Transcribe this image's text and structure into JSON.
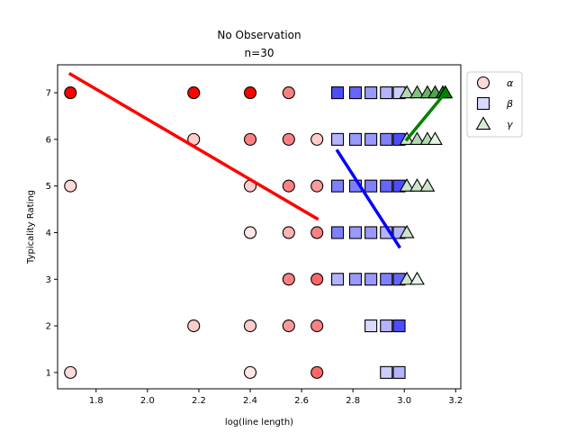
{
  "chart_data": {
    "type": "scatter",
    "title": "No Observation",
    "subtitle": "n=30",
    "xlabel": "log(line length)",
    "ylabel": "Typicality Rating",
    "xlim": [
      1.65,
      3.22
    ],
    "ylim": [
      0.65,
      7.6
    ],
    "xticks": [
      1.8,
      2.0,
      2.2,
      2.4,
      2.6,
      2.8,
      3.0,
      3.2
    ],
    "xtick_labels": [
      "1.8",
      "2.0",
      "2.2",
      "2.4",
      "2.6",
      "2.8",
      "3.0",
      "3.2"
    ],
    "yticks": [
      1,
      2,
      3,
      4,
      5,
      6,
      7
    ],
    "ytick_labels": [
      "1",
      "2",
      "3",
      "4",
      "5",
      "6",
      "7"
    ],
    "grid": false,
    "legend_position": "outside-top-right",
    "series": [
      {
        "name": "α",
        "marker": "circle",
        "base_color": "#ff0000",
        "fit_color": "#ff0000",
        "fit_line": [
          [
            1.7,
            7.4
          ],
          [
            2.66,
            4.3
          ]
        ],
        "points": [
          {
            "x": 1.7,
            "y": 7,
            "alpha": 1.0
          },
          {
            "x": 1.7,
            "y": 5,
            "alpha": 0.15
          },
          {
            "x": 1.7,
            "y": 1,
            "alpha": 0.15
          },
          {
            "x": 2.18,
            "y": 7,
            "alpha": 1.0
          },
          {
            "x": 2.18,
            "y": 6,
            "alpha": 0.2
          },
          {
            "x": 2.18,
            "y": 2,
            "alpha": 0.2
          },
          {
            "x": 2.4,
            "y": 7,
            "alpha": 1.0
          },
          {
            "x": 2.4,
            "y": 6,
            "alpha": 0.5
          },
          {
            "x": 2.4,
            "y": 5,
            "alpha": 0.2
          },
          {
            "x": 2.4,
            "y": 4,
            "alpha": 0.1
          },
          {
            "x": 2.4,
            "y": 2,
            "alpha": 0.2
          },
          {
            "x": 2.4,
            "y": 1,
            "alpha": 0.1
          },
          {
            "x": 2.55,
            "y": 7,
            "alpha": 0.5
          },
          {
            "x": 2.55,
            "y": 6,
            "alpha": 0.5
          },
          {
            "x": 2.55,
            "y": 5,
            "alpha": 0.5
          },
          {
            "x": 2.55,
            "y": 4,
            "alpha": 0.3
          },
          {
            "x": 2.55,
            "y": 3,
            "alpha": 0.5
          },
          {
            "x": 2.55,
            "y": 2,
            "alpha": 0.4
          },
          {
            "x": 2.66,
            "y": 6,
            "alpha": 0.2
          },
          {
            "x": 2.66,
            "y": 5,
            "alpha": 0.4
          },
          {
            "x": 2.66,
            "y": 4,
            "alpha": 0.5
          },
          {
            "x": 2.66,
            "y": 3,
            "alpha": 0.6
          },
          {
            "x": 2.66,
            "y": 2,
            "alpha": 0.5
          },
          {
            "x": 2.66,
            "y": 1,
            "alpha": 0.6
          }
        ]
      },
      {
        "name": "β",
        "marker": "square",
        "base_color": "#0000ff",
        "fit_color": "#0000ff",
        "fit_line": [
          [
            2.74,
            5.75
          ],
          [
            2.98,
            3.7
          ]
        ],
        "points": [
          {
            "x": 2.74,
            "y": 7,
            "alpha": 0.7
          },
          {
            "x": 2.74,
            "y": 6,
            "alpha": 0.3
          },
          {
            "x": 2.74,
            "y": 5,
            "alpha": 0.5
          },
          {
            "x": 2.74,
            "y": 4,
            "alpha": 0.5
          },
          {
            "x": 2.74,
            "y": 3,
            "alpha": 0.3
          },
          {
            "x": 2.81,
            "y": 7,
            "alpha": 0.6
          },
          {
            "x": 2.81,
            "y": 6,
            "alpha": 0.4
          },
          {
            "x": 2.81,
            "y": 5,
            "alpha": 0.5
          },
          {
            "x": 2.81,
            "y": 4,
            "alpha": 0.4
          },
          {
            "x": 2.81,
            "y": 3,
            "alpha": 0.4
          },
          {
            "x": 2.87,
            "y": 7,
            "alpha": 0.4
          },
          {
            "x": 2.87,
            "y": 6,
            "alpha": 0.4
          },
          {
            "x": 2.87,
            "y": 5,
            "alpha": 0.5
          },
          {
            "x": 2.87,
            "y": 4,
            "alpha": 0.4
          },
          {
            "x": 2.87,
            "y": 3,
            "alpha": 0.4
          },
          {
            "x": 2.87,
            "y": 2,
            "alpha": 0.15
          },
          {
            "x": 2.93,
            "y": 7,
            "alpha": 0.3
          },
          {
            "x": 2.93,
            "y": 6,
            "alpha": 0.5
          },
          {
            "x": 2.93,
            "y": 5,
            "alpha": 0.6
          },
          {
            "x": 2.93,
            "y": 4,
            "alpha": 0.3
          },
          {
            "x": 2.93,
            "y": 3,
            "alpha": 0.5
          },
          {
            "x": 2.93,
            "y": 2,
            "alpha": 0.3
          },
          {
            "x": 2.93,
            "y": 1,
            "alpha": 0.2
          },
          {
            "x": 2.98,
            "y": 7,
            "alpha": 0.2
          },
          {
            "x": 2.98,
            "y": 6,
            "alpha": 0.7
          },
          {
            "x": 2.98,
            "y": 5,
            "alpha": 0.7
          },
          {
            "x": 2.98,
            "y": 4,
            "alpha": 0.3
          },
          {
            "x": 2.98,
            "y": 3,
            "alpha": 0.6
          },
          {
            "x": 2.98,
            "y": 2,
            "alpha": 0.7
          },
          {
            "x": 2.98,
            "y": 1,
            "alpha": 0.3
          }
        ]
      },
      {
        "name": "γ",
        "marker": "triangle",
        "base_color": "#008000",
        "fit_color": "#008000",
        "fit_line": [
          [
            3.01,
            6.0
          ],
          [
            3.16,
            7.0
          ]
        ],
        "points": [
          {
            "x": 3.01,
            "y": 7,
            "alpha": 0.3
          },
          {
            "x": 3.01,
            "y": 6,
            "alpha": 0.2
          },
          {
            "x": 3.01,
            "y": 5,
            "alpha": 0.2
          },
          {
            "x": 3.01,
            "y": 4,
            "alpha": 0.2
          },
          {
            "x": 3.01,
            "y": 3,
            "alpha": 0.2
          },
          {
            "x": 3.05,
            "y": 7,
            "alpha": 0.5
          },
          {
            "x": 3.05,
            "y": 6,
            "alpha": 0.3
          },
          {
            "x": 3.05,
            "y": 5,
            "alpha": 0.2
          },
          {
            "x": 3.05,
            "y": 3,
            "alpha": 0.1
          },
          {
            "x": 3.09,
            "y": 7,
            "alpha": 0.6
          },
          {
            "x": 3.09,
            "y": 6,
            "alpha": 0.3
          },
          {
            "x": 3.09,
            "y": 5,
            "alpha": 0.2
          },
          {
            "x": 3.12,
            "y": 7,
            "alpha": 0.7
          },
          {
            "x": 3.12,
            "y": 6,
            "alpha": 0.1
          },
          {
            "x": 3.15,
            "y": 7,
            "alpha": 0.9
          },
          {
            "x": 3.16,
            "y": 7,
            "alpha": 1.0
          }
        ]
      }
    ]
  }
}
